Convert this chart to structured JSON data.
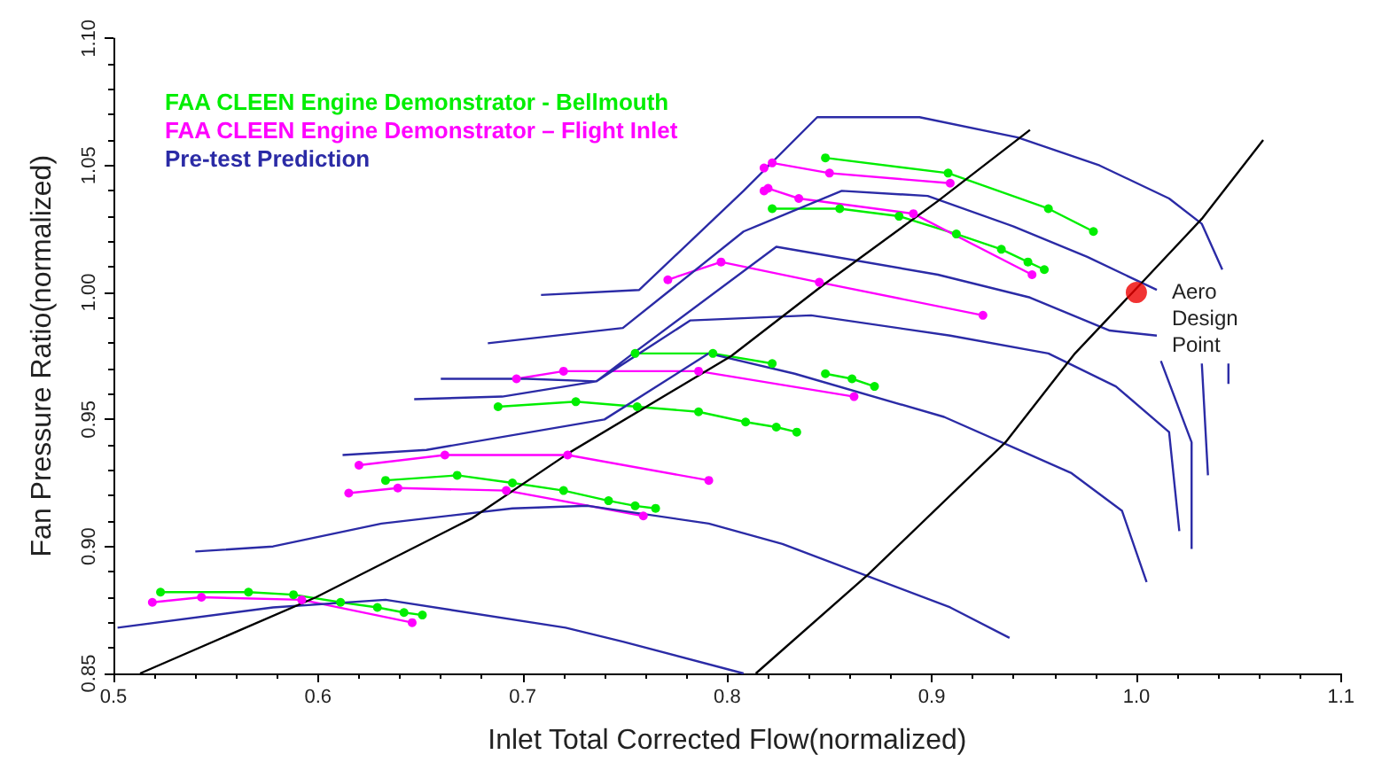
{
  "chart_data": {
    "type": "line",
    "xlabel": "Inlet Total Corrected Flow(normalized)",
    "ylabel": "Fan Pressure Ratio(normalized)",
    "xlim": [
      0.5,
      1.1
    ],
    "xticks": [
      0.5,
      0.6,
      0.7,
      0.8,
      0.9,
      {
        "value": 1.0,
        "label": "1.0"
      },
      1.1
    ],
    "ylim": [
      0.85,
      1.1
    ],
    "yticks": [
      0.85,
      {
        "value": 0.9,
        "label": "0.90"
      },
      0.95,
      {
        "value": 1.0,
        "label": "1.00"
      },
      1.05,
      {
        "value": 1.1,
        "label": "1.10"
      }
    ],
    "grid": false,
    "legend": "top left",
    "series": [
      {
        "name": "FAA CLEEN Engine Demonstrator - Bellmouth",
        "color": "#00ee00",
        "marker": "circle",
        "x": [
          0.848,
          0.908,
          0.957,
          0.979,
          null,
          0.822,
          0.855,
          0.884,
          0.912,
          0.934,
          0.947,
          0.955,
          null,
          0.755,
          0.793,
          0.822,
          null,
          0.848,
          0.861,
          0.872,
          null,
          0.688,
          0.726,
          0.756,
          0.786,
          0.809,
          0.824,
          0.834,
          null,
          0.633,
          0.668,
          0.695,
          0.72,
          0.742,
          0.755,
          0.765,
          null,
          0.523,
          0.566,
          0.588,
          0.611,
          0.629,
          0.642,
          0.651
        ],
        "values": [
          1.053,
          1.047,
          1.033,
          1.024,
          null,
          1.033,
          1.033,
          1.03,
          1.023,
          1.017,
          1.012,
          1.009,
          null,
          0.976,
          0.976,
          0.972,
          null,
          0.968,
          0.966,
          0.963,
          null,
          0.955,
          0.957,
          0.955,
          0.953,
          0.949,
          0.947,
          0.945,
          null,
          0.926,
          0.928,
          0.925,
          0.922,
          0.918,
          0.916,
          0.915,
          null,
          0.882,
          0.882,
          0.881,
          0.878,
          0.876,
          0.874,
          0.873
        ]
      },
      {
        "name": "FAA CLEEN Engine Demonstrator – Flight Inlet",
        "color": "#ff00ff",
        "marker": "circle",
        "x": [
          0.818,
          0.822,
          0.85,
          0.909,
          null,
          0.818,
          0.82,
          0.835,
          0.891,
          0.949,
          null,
          0.771,
          0.797,
          0.845,
          0.925,
          null,
          0.697,
          0.72,
          0.786,
          0.862,
          null,
          0.62,
          0.662,
          0.722,
          0.791,
          null,
          0.615,
          0.639,
          0.692,
          0.759,
          null,
          0.519,
          0.543,
          0.592,
          0.646
        ],
        "values": [
          1.049,
          1.051,
          1.047,
          1.043,
          null,
          1.04,
          1.041,
          1.037,
          1.031,
          1.007,
          null,
          1.005,
          1.012,
          1.004,
          0.991,
          null,
          0.966,
          0.969,
          0.969,
          0.959,
          null,
          0.932,
          0.936,
          0.936,
          0.926,
          null,
          0.921,
          0.923,
          0.922,
          0.912,
          null,
          0.878,
          0.88,
          0.879,
          0.87
        ]
      },
      {
        "name": "Pre-test Prediction",
        "color": "#2b2ba6",
        "marker": "none",
        "x": [
          0.709,
          0.757,
          0.808,
          0.844,
          0.894,
          0.942,
          0.982,
          1.016,
          1.032,
          1.042,
          null,
          0.683,
          0.749,
          0.808,
          0.856,
          0.898,
          0.94,
          0.976,
          1.01,
          null,
          0.66,
          0.702,
          0.736,
          0.754,
          0.824,
          0.903,
          0.948,
          0.987,
          1.01,
          null,
          0.612,
          0.653,
          0.74,
          0.791,
          0.833,
          0.906,
          0.968,
          0.993,
          1.005,
          null,
          0.647,
          0.69,
          0.736,
          0.782,
          0.841,
          0.909,
          0.957,
          0.99,
          1.016,
          1.021,
          null,
          1.012,
          1.027,
          1.027,
          null,
          1.032,
          1.035,
          null,
          1.045,
          1.045,
          null,
          0.502,
          0.578,
          0.633,
          0.721,
          0.749,
          0.808,
          null,
          0.54,
          0.578,
          0.631,
          0.695,
          0.732,
          0.791,
          0.827,
          0.909,
          0.938
        ],
        "values": [
          0.999,
          1.001,
          1.04,
          1.069,
          1.069,
          1.061,
          1.05,
          1.037,
          1.027,
          1.009,
          null,
          0.98,
          0.986,
          1.024,
          1.04,
          1.038,
          1.026,
          1.014,
          1.001,
          null,
          0.966,
          0.966,
          0.965,
          0.976,
          1.018,
          1.007,
          0.998,
          0.985,
          0.983,
          null,
          0.936,
          0.938,
          0.95,
          0.976,
          0.968,
          0.951,
          0.929,
          0.914,
          0.886,
          null,
          0.958,
          0.959,
          0.965,
          0.989,
          0.991,
          0.983,
          0.976,
          0.963,
          0.945,
          0.906,
          null,
          0.973,
          0.941,
          0.899,
          null,
          0.972,
          0.928,
          null,
          0.972,
          0.964,
          null,
          0.868,
          0.876,
          0.879,
          0.868,
          0.8625,
          0.85,
          null,
          0.898,
          0.9,
          0.909,
          0.915,
          0.916,
          0.909,
          0.901,
          0.876,
          0.864
        ]
      },
      {
        "color": "#000000",
        "marker": "none",
        "x": [
          0.513,
          0.599,
          0.675,
          0.723,
          0.802,
          0.847,
          0.903,
          0.948,
          null,
          0.814,
          0.869,
          0.936,
          0.97,
          1.004,
          1.032,
          1.062
        ],
        "values": [
          0.85,
          0.88,
          0.911,
          0.937,
          0.975,
          1.003,
          1.036,
          1.064,
          null,
          0.85,
          0.889,
          0.941,
          0.976,
          1.005,
          1.029,
          1.06
        ]
      },
      {
        "color": "#ee0000",
        "type": "scatter",
        "marker": "circle",
        "x": [
          1.0
        ],
        "values": [
          1.0
        ]
      }
    ],
    "annotations": [
      {
        "text": "Aero Design Point",
        "x": 1.0,
        "y": 1.0
      }
    ]
  }
}
